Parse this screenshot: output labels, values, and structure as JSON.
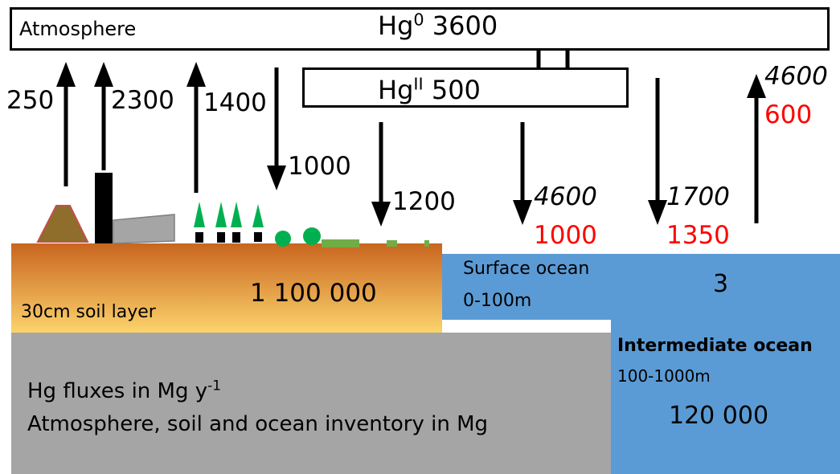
{
  "colors": {
    "soil_top": "#c8651f",
    "soil_bottom": "#fcd36c",
    "ocean": "#5b9bd5",
    "bedrock": "#a5a5a5",
    "tree": "#00b050",
    "grass": "#70ad47",
    "volcano": "#8f6d2a",
    "factory": "#a5a5a5",
    "arrow": "#000000",
    "highlight": "#ff0000"
  },
  "atmosphere": {
    "label": "Atmosphere",
    "hg0_label": "Hg",
    "hg0_sup": "0",
    "hg0_value": "3600",
    "hgII_label": "Hg",
    "hgII_sup": "II",
    "hgII_value": "500"
  },
  "land_fluxes": {
    "volcano_up": "250",
    "anthropogenic_up": "2300",
    "vegetation_up": "1400",
    "deposition_hg0": "1000",
    "deposition_hgII": "1200"
  },
  "ocean_fluxes": {
    "deposition_hgII_black": "4600",
    "deposition_hgII_red": "1000",
    "deposition_hg0_black": "1700",
    "deposition_hg0_red": "1350",
    "evasion_black": "4600",
    "evasion_red": "600"
  },
  "soil": {
    "label": "30cm soil layer",
    "inventory": "1 100 000"
  },
  "surface_ocean": {
    "name": "Surface ocean",
    "depth": "0-100m",
    "inventory": "3"
  },
  "intermediate_ocean": {
    "name": "Intermediate ocean",
    "depth": "100-1000m",
    "inventory": "120 000"
  },
  "legend": {
    "flux_units_prefix": "Hg fluxes in Mg y",
    "flux_units_sup": "-1",
    "inventory_units": "Atmosphere, soil and ocean inventory in Mg"
  }
}
